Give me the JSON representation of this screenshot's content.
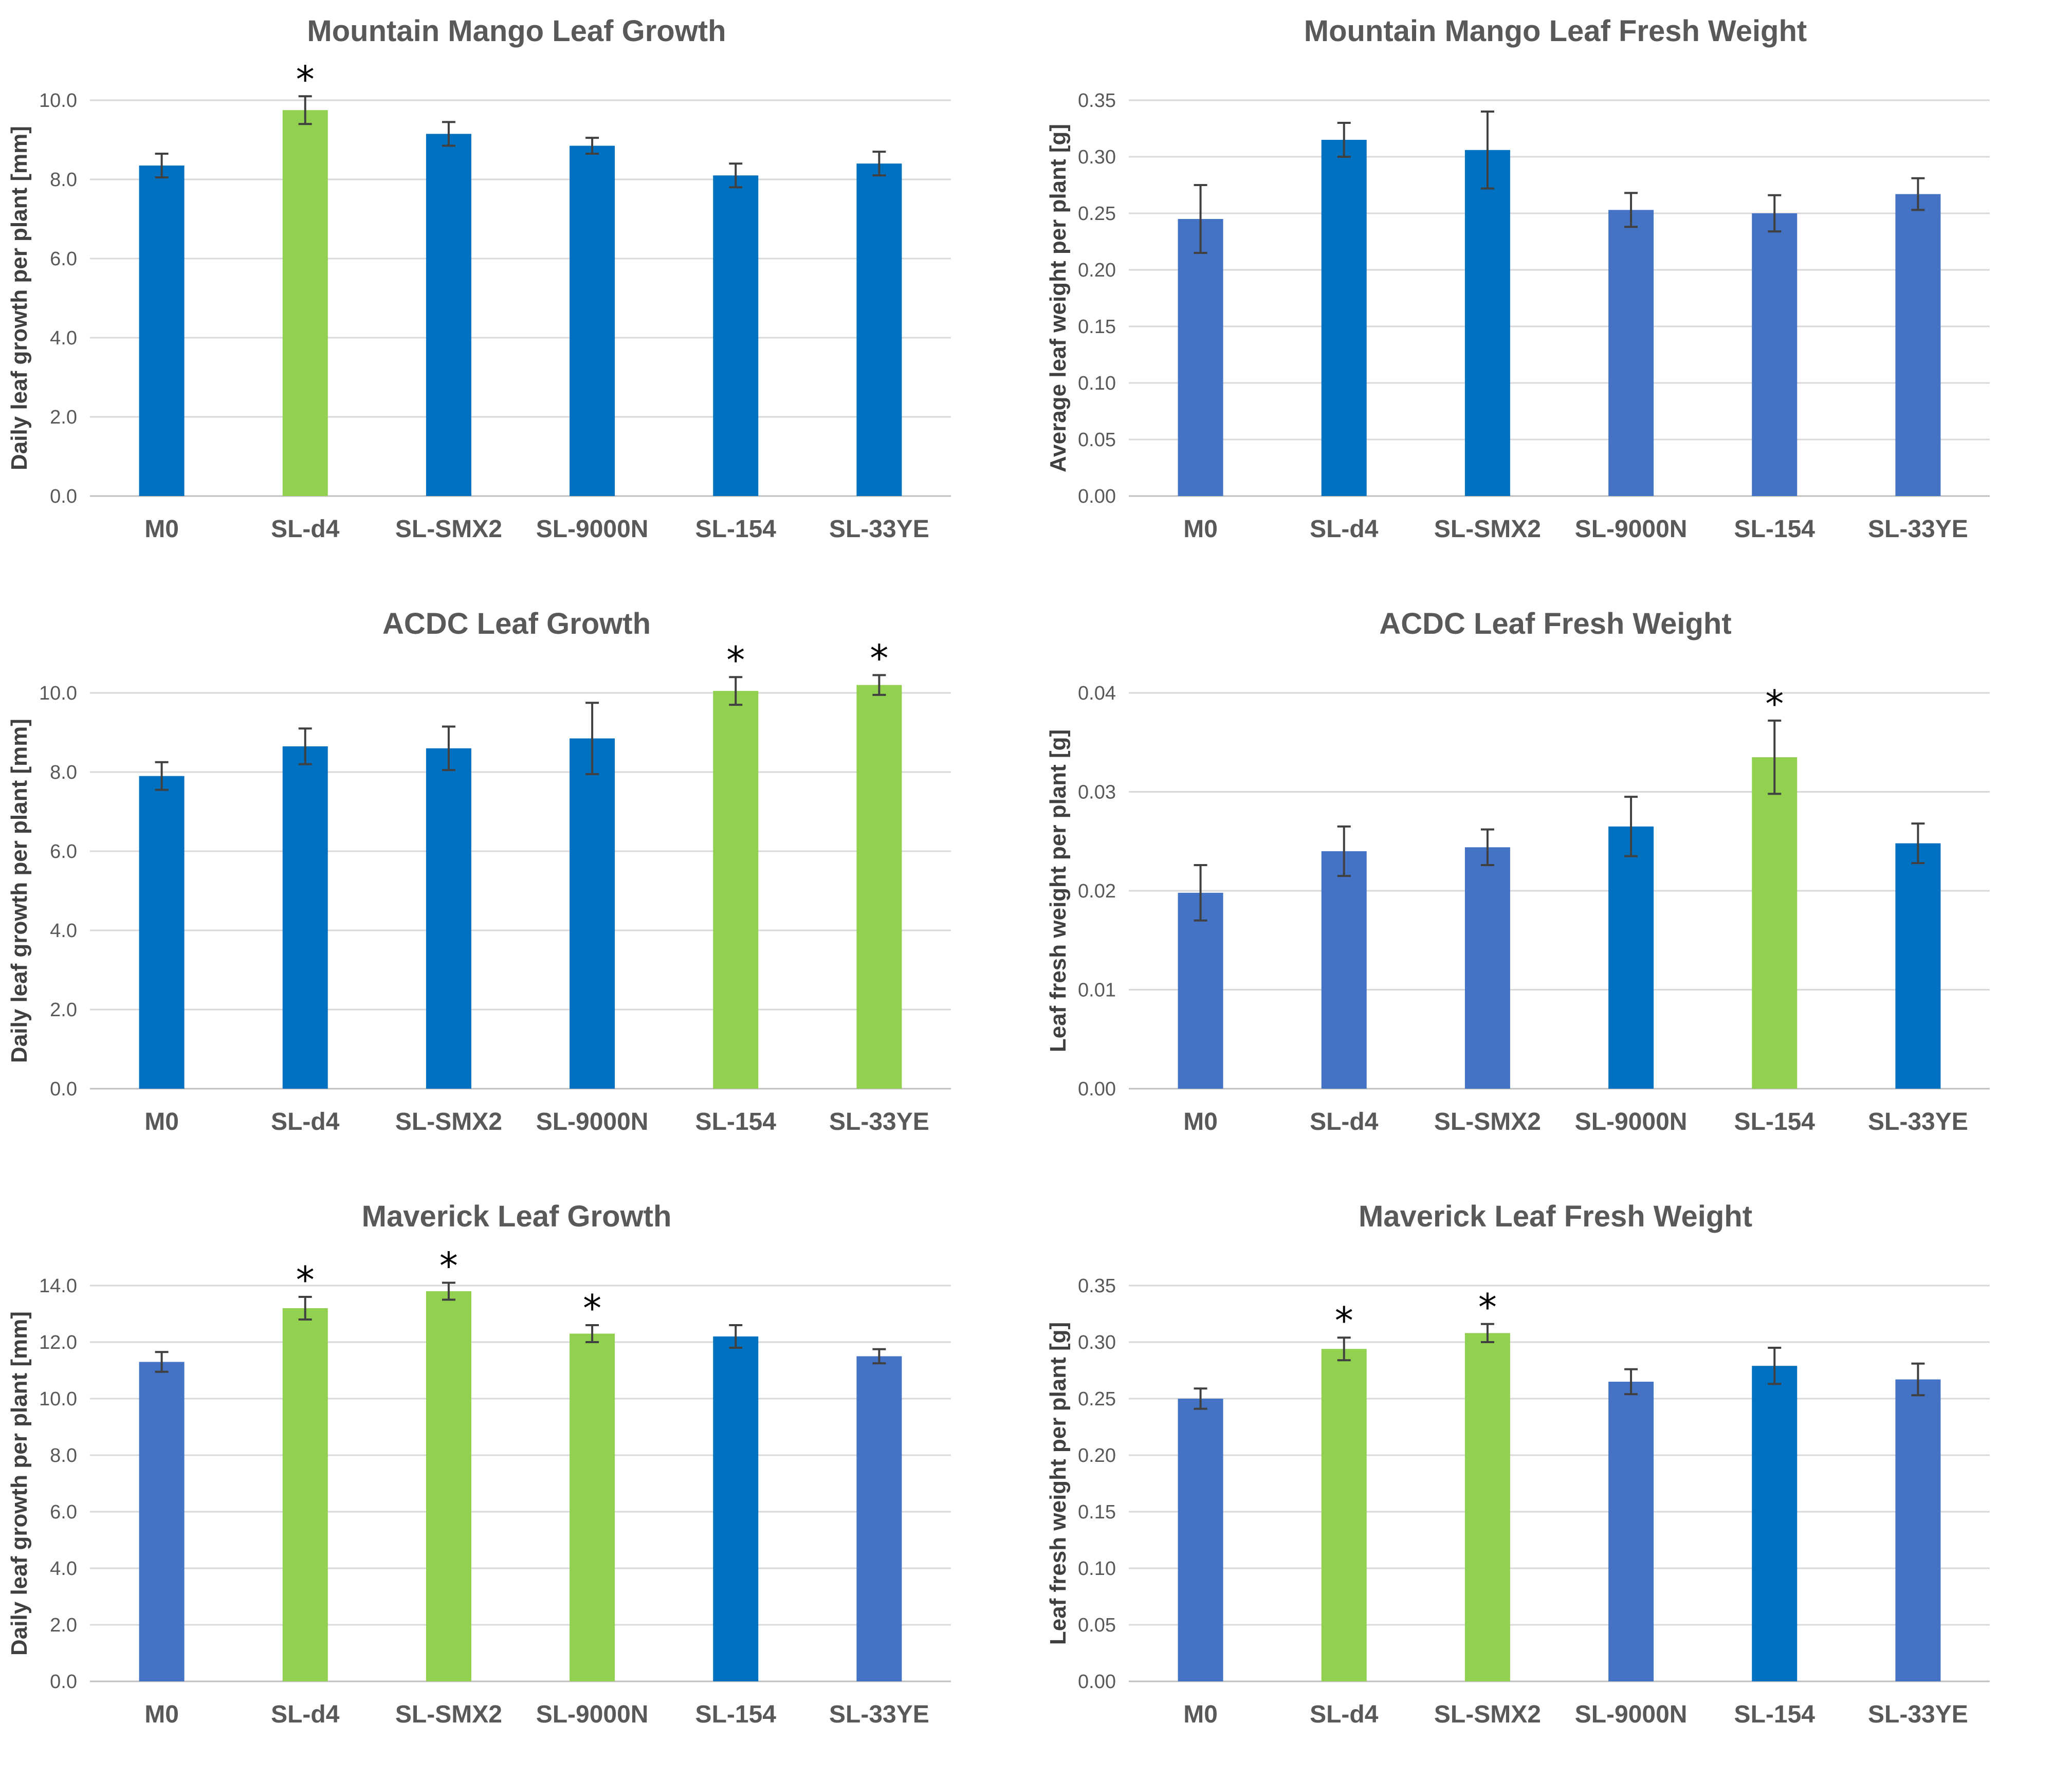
{
  "colors": {
    "dark_blue": "#0070C0",
    "mid_blue": "#4472C4",
    "green": "#92D050",
    "grid": "#D9D9D9",
    "text": "#595959",
    "error_bar": "#404040"
  },
  "chart_data": [
    {
      "type": "bar",
      "title": "Mountain Mango Leaf Growth",
      "ylabel": "Daily leaf growth per plant [mm]",
      "xlabel": "",
      "categories": [
        "M0",
        "SL-d4",
        "SL-SMX2",
        "SL-9000N",
        "SL-154",
        "SL-33YE"
      ],
      "values": [
        8.35,
        9.75,
        9.15,
        8.85,
        8.1,
        8.4
      ],
      "errors": [
        0.3,
        0.35,
        0.3,
        0.2,
        0.3,
        0.3
      ],
      "significant": [
        false,
        true,
        false,
        false,
        false,
        false
      ],
      "bar_colors": [
        "dark_blue",
        "green",
        "dark_blue",
        "dark_blue",
        "dark_blue",
        "dark_blue"
      ],
      "ylim": [
        0,
        10
      ],
      "yticks": [
        "0.0",
        "2.0",
        "4.0",
        "6.0",
        "8.0",
        "10.0"
      ],
      "grid": true,
      "annotation_marker": "*"
    },
    {
      "type": "bar",
      "title": "Mountain Mango Leaf Fresh Weight",
      "ylabel": "Average leaf weight per plant [g]",
      "xlabel": "",
      "categories": [
        "M0",
        "SL-d4",
        "SL-SMX2",
        "SL-9000N",
        "SL-154",
        "SL-33YE"
      ],
      "values": [
        0.245,
        0.315,
        0.306,
        0.253,
        0.25,
        0.267
      ],
      "errors": [
        0.03,
        0.015,
        0.034,
        0.015,
        0.016,
        0.014
      ],
      "significant": [
        false,
        false,
        false,
        false,
        false,
        false
      ],
      "bar_colors": [
        "mid_blue",
        "dark_blue",
        "dark_blue",
        "mid_blue",
        "mid_blue",
        "mid_blue"
      ],
      "ylim": [
        0,
        0.35
      ],
      "yticks": [
        "0.00",
        "0.05",
        "0.10",
        "0.15",
        "0.20",
        "0.25",
        "0.30",
        "0.35"
      ],
      "grid": true,
      "annotation_marker": "*"
    },
    {
      "type": "bar",
      "title": "ACDC Leaf Growth",
      "ylabel": "Daily leaf growth per plant [mm]",
      "xlabel": "",
      "categories": [
        "M0",
        "SL-d4",
        "SL-SMX2",
        "SL-9000N",
        "SL-154",
        "SL-33YE"
      ],
      "values": [
        7.9,
        8.65,
        8.6,
        8.85,
        10.05,
        10.2
      ],
      "errors": [
        0.35,
        0.45,
        0.55,
        0.9,
        0.35,
        0.25
      ],
      "significant": [
        false,
        false,
        false,
        false,
        true,
        true
      ],
      "bar_colors": [
        "dark_blue",
        "dark_blue",
        "dark_blue",
        "dark_blue",
        "green",
        "green"
      ],
      "ylim": [
        0,
        10
      ],
      "yticks": [
        "0.0",
        "2.0",
        "4.0",
        "6.0",
        "8.0",
        "10.0"
      ],
      "grid": true,
      "annotation_marker": "*"
    },
    {
      "type": "bar",
      "title": "ACDC Leaf Fresh Weight",
      "ylabel": "Leaf fresh weight per plant [g]",
      "xlabel": "",
      "categories": [
        "M0",
        "SL-d4",
        "SL-SMX2",
        "SL-9000N",
        "SL-154",
        "SL-33YE"
      ],
      "values": [
        0.0198,
        0.024,
        0.0244,
        0.0265,
        0.0335,
        0.0248
      ],
      "errors": [
        0.0028,
        0.0025,
        0.0018,
        0.003,
        0.0037,
        0.002
      ],
      "significant": [
        false,
        false,
        false,
        false,
        true,
        false
      ],
      "bar_colors": [
        "mid_blue",
        "mid_blue",
        "mid_blue",
        "dark_blue",
        "green",
        "dark_blue"
      ],
      "ylim": [
        0,
        0.04
      ],
      "yticks": [
        "0.00",
        "0.01",
        "0.02",
        "0.03",
        "0.04"
      ],
      "grid": true,
      "annotation_marker": "*"
    },
    {
      "type": "bar",
      "title": "Maverick Leaf Growth",
      "ylabel": "Daily leaf growth per plant [mm]",
      "xlabel": "",
      "categories": [
        "M0",
        "SL-d4",
        "SL-SMX2",
        "SL-9000N",
        "SL-154",
        "SL-33YE"
      ],
      "values": [
        11.3,
        13.2,
        13.8,
        12.3,
        12.2,
        11.5
      ],
      "errors": [
        0.35,
        0.4,
        0.3,
        0.3,
        0.4,
        0.25
      ],
      "significant": [
        false,
        true,
        true,
        true,
        false,
        false
      ],
      "bar_colors": [
        "mid_blue",
        "green",
        "green",
        "green",
        "dark_blue",
        "mid_blue"
      ],
      "ylim": [
        0,
        14
      ],
      "yticks": [
        "0.0",
        "2.0",
        "4.0",
        "6.0",
        "8.0",
        "10.0",
        "12.0",
        "14.0"
      ],
      "grid": true,
      "annotation_marker": "*"
    },
    {
      "type": "bar",
      "title": "Maverick Leaf Fresh Weight",
      "ylabel": "Leaf fresh weight per plant [g]",
      "xlabel": "",
      "categories": [
        "M0",
        "SL-d4",
        "SL-SMX2",
        "SL-9000N",
        "SL-154",
        "SL-33YE"
      ],
      "values": [
        0.25,
        0.294,
        0.308,
        0.265,
        0.279,
        0.267
      ],
      "errors": [
        0.009,
        0.01,
        0.008,
        0.011,
        0.016,
        0.014
      ],
      "significant": [
        false,
        true,
        true,
        false,
        false,
        false
      ],
      "bar_colors": [
        "mid_blue",
        "green",
        "green",
        "mid_blue",
        "dark_blue",
        "mid_blue"
      ],
      "ylim": [
        0,
        0.35
      ],
      "yticks": [
        "0.00",
        "0.05",
        "0.10",
        "0.15",
        "0.20",
        "0.25",
        "0.30",
        "0.35"
      ],
      "grid": true,
      "annotation_marker": "*"
    }
  ]
}
